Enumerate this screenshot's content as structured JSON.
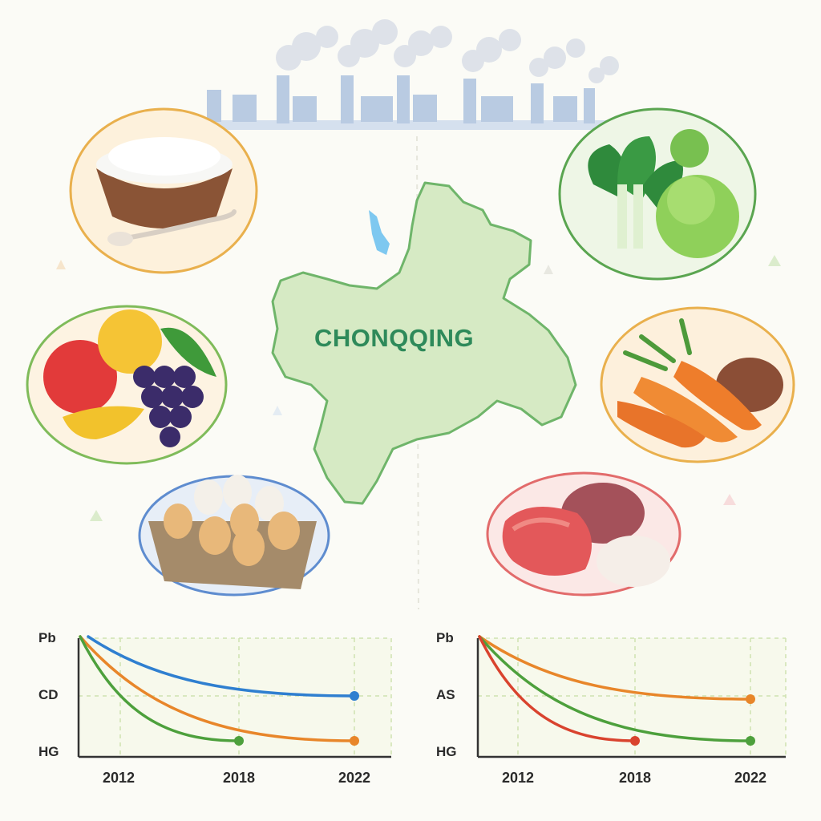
{
  "map": {
    "region_label": "CHONQQING"
  },
  "food_plates": [
    {
      "name": "rice"
    },
    {
      "name": "leafy vegetables"
    },
    {
      "name": "fruits"
    },
    {
      "name": "root vegetables"
    },
    {
      "name": "eggs"
    },
    {
      "name": "meat"
    }
  ],
  "chart_data": [
    {
      "type": "line",
      "y_tick_labels": [
        "Pb",
        "CD",
        "HG"
      ],
      "x_tick_labels": [
        "2012",
        "2018",
        "2022"
      ],
      "series": [
        {
          "color": "#2f7fd0",
          "end_label_x": "2022",
          "end_level": "CD"
        },
        {
          "color": "#e8862a",
          "end_label_x": "2022",
          "end_level": "HG"
        },
        {
          "color": "#4da03c",
          "end_label_x": "2018",
          "end_level": "HG"
        }
      ]
    },
    {
      "type": "line",
      "y_tick_labels": [
        "Pb",
        "AS",
        "HG"
      ],
      "x_tick_labels": [
        "2012",
        "2018",
        "2022"
      ],
      "series": [
        {
          "color": "#e8862a",
          "end_label_x": "2022",
          "end_level": "AS"
        },
        {
          "color": "#4da03c",
          "end_label_x": "2022",
          "end_level": "HG"
        },
        {
          "color": "#d9432e",
          "end_label_x": "2018",
          "end_level": "HG"
        }
      ]
    }
  ]
}
